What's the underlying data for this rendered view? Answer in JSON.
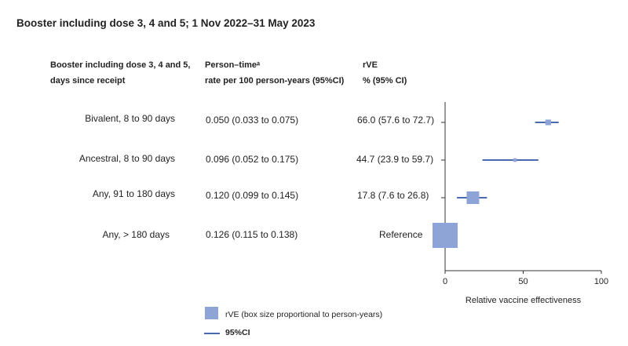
{
  "header": {
    "title": "Booster including dose 3, 4 and 5; 1 Nov 2022–31 May 2023",
    "col1_line1": "Booster including dose 3, 4 and 5,",
    "col1_line2": "days since receipt",
    "col2_line1": "Person–timeᵃ",
    "col2_line2": "rate per 100 person-years (95%CI)",
    "col3_line1": "rVE",
    "col3_line2": "% (95% CI)"
  },
  "rows": [
    {
      "label": "Bivalent, 8 to 90 days",
      "rate": "0.050 (0.033 to 0.075)",
      "rve": "66.0 (57.6 to 72.7)"
    },
    {
      "label": "Ancestral, 8 to 90 days",
      "rate": "0.096 (0.052 to 0.175)",
      "rve": "44.7 (23.9 to 59.7)"
    },
    {
      "label": "Any, 91 to 180 days",
      "rate": "0.120 (0.099 to 0.145)",
      "rve": "17.8 (7.6 to 26.8)"
    },
    {
      "label": "Any, > 180 days",
      "rate": "0.126 (0.115 to 0.138)",
      "rve": "Reference"
    }
  ],
  "legend": {
    "box_label": "rVE (box size proportional to person-years)",
    "line_label": "95%CI"
  },
  "colors": {
    "marker": "#8ea4d6",
    "ci_line": "#4a6aaf",
    "axis": "#333333"
  },
  "chart_data": {
    "type": "forest",
    "xlabel": "Relative vaccine effectiveness",
    "xlim": [
      0,
      100
    ],
    "xticks": [
      0,
      50,
      100
    ],
    "points": [
      {
        "label": "Bivalent, 8 to 90 days",
        "estimate": 66.0,
        "lower": 57.6,
        "upper": 72.7,
        "weight": 0.05
      },
      {
        "label": "Ancestral, 8 to 90 days",
        "estimate": 44.7,
        "lower": 23.9,
        "upper": 59.7,
        "weight": 0.02
      },
      {
        "label": "Any, 91 to 180 days",
        "estimate": 17.8,
        "lower": 7.6,
        "upper": 26.8,
        "weight": 0.25
      },
      {
        "label": "Any, > 180 days",
        "estimate": 0,
        "lower": null,
        "upper": null,
        "weight": 1.0,
        "reference": true
      }
    ]
  }
}
